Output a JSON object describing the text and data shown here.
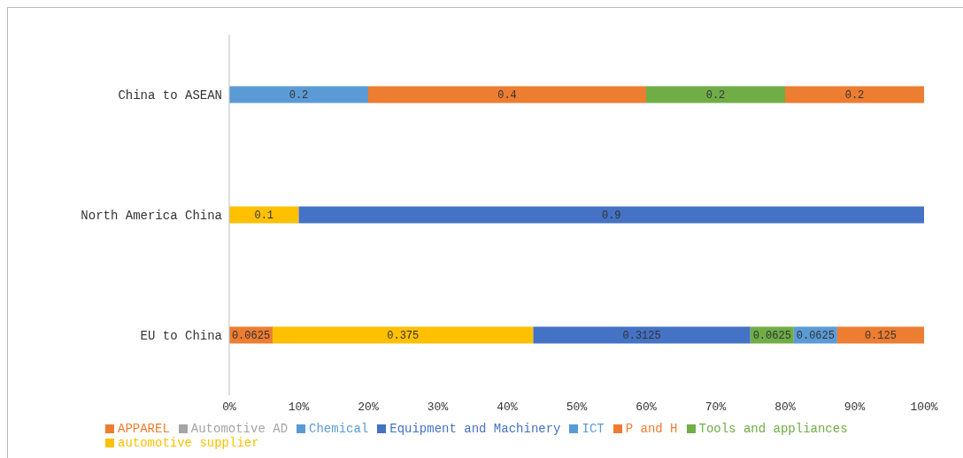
{
  "chart_data": {
    "type": "bar",
    "orientation": "horizontal",
    "stacked": true,
    "categories": [
      "China to ASEAN",
      "North America China",
      "EU to China"
    ],
    "series": [
      {
        "name": "ICT",
        "color": "#5b9bd5",
        "values": [
          0.2,
          null,
          null
        ]
      },
      {
        "name": "APPAREL",
        "color": "#ed7d31",
        "values": [
          0.4,
          null,
          0.0625
        ]
      },
      {
        "name": "Automotive AD",
        "color": "#a5a5a5",
        "values": [
          null,
          null,
          null
        ]
      },
      {
        "name": "automotive supplier",
        "color": "#ffc000",
        "values": [
          null,
          0.1,
          0.375
        ]
      },
      {
        "name": "Equipment and Machinery",
        "color": "#4472c4",
        "values": [
          null,
          0.9,
          0.3125
        ]
      },
      {
        "name": "Tools and appliances",
        "color": "#70ad47",
        "values": [
          0.2,
          null,
          0.0625
        ]
      },
      {
        "name": "Chemical",
        "color": "#5b9bd5",
        "values": [
          null,
          null,
          0.0625
        ]
      },
      {
        "name": "P and H",
        "color": "#ed7d31",
        "values": [
          0.2,
          null,
          0.125
        ]
      }
    ],
    "xlim": [
      0,
      1
    ],
    "xticks": [
      {
        "value": 0,
        "label": "0%"
      },
      {
        "value": 0.1,
        "label": "10%"
      },
      {
        "value": 0.2,
        "label": "20%"
      },
      {
        "value": 0.3,
        "label": "30%"
      },
      {
        "value": 0.4,
        "label": "40%"
      },
      {
        "value": 0.5,
        "label": "50%"
      },
      {
        "value": 0.6,
        "label": "60%"
      },
      {
        "value": 0.7,
        "label": "70%"
      },
      {
        "value": 0.8,
        "label": "80%"
      },
      {
        "value": 0.9,
        "label": "90%"
      },
      {
        "value": 1,
        "label": "100%"
      }
    ],
    "data_labels": true,
    "legend": "bottom",
    "grid": false
  }
}
